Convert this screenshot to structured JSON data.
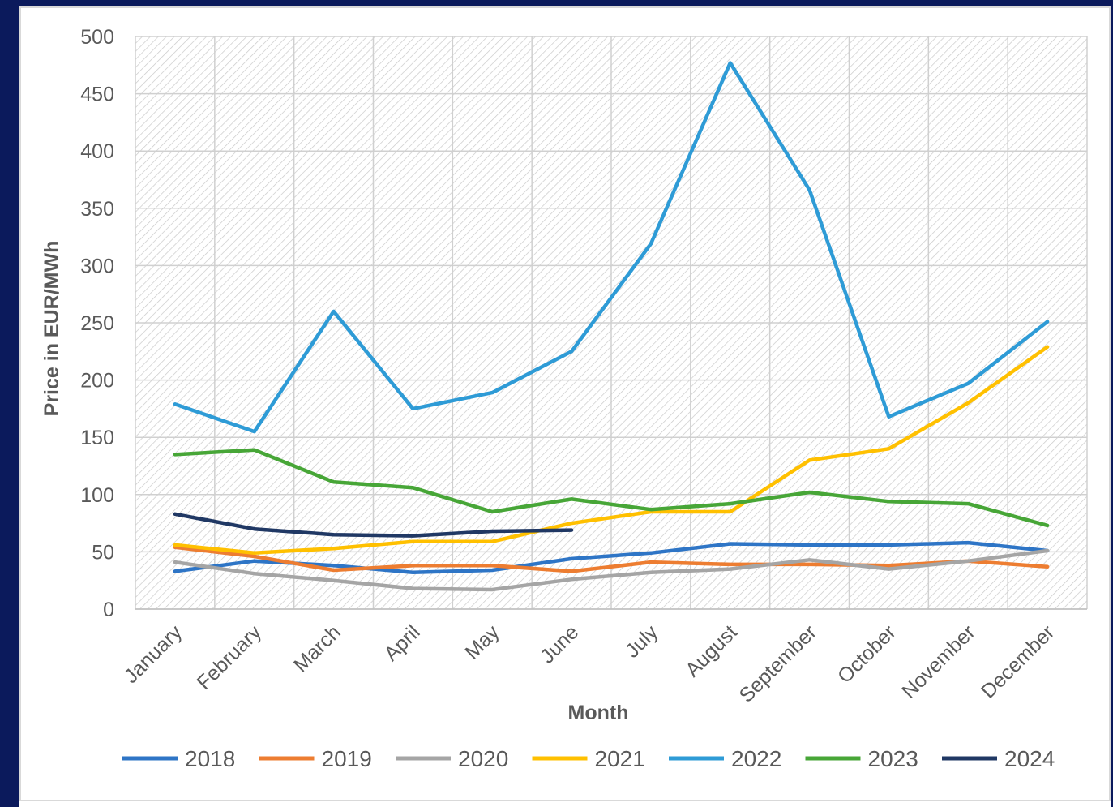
{
  "chart_data": {
    "type": "line",
    "title": "",
    "xlabel": "Month",
    "ylabel": "Price in EUR/MWh",
    "ylim": [
      0,
      500
    ],
    "yticks": [
      0,
      50,
      100,
      150,
      200,
      250,
      300,
      350,
      400,
      450,
      500
    ],
    "grid": true,
    "legend": "bottom",
    "categories": [
      "January",
      "February",
      "March",
      "April",
      "May",
      "June",
      "July",
      "August",
      "September",
      "October",
      "November",
      "December"
    ],
    "series": [
      {
        "name": "2018",
        "color": "#2e75c6",
        "values": [
          33,
          42,
          38,
          32,
          34,
          44,
          49,
          57,
          56,
          56,
          58,
          51
        ]
      },
      {
        "name": "2019",
        "color": "#ed7d31",
        "values": [
          54,
          46,
          34,
          38,
          38,
          33,
          41,
          39,
          39,
          38,
          42,
          37
        ]
      },
      {
        "name": "2020",
        "color": "#a5a5a5",
        "values": [
          41,
          31,
          25,
          18,
          17,
          26,
          32,
          35,
          43,
          35,
          42,
          51
        ]
      },
      {
        "name": "2021",
        "color": "#ffc000",
        "values": [
          56,
          49,
          53,
          59,
          59,
          75,
          85,
          85,
          130,
          140,
          180,
          229
        ]
      },
      {
        "name": "2022",
        "color": "#2e9bd6",
        "values": [
          179,
          155,
          260,
          175,
          189,
          225,
          319,
          477,
          366,
          168,
          197,
          251
        ]
      },
      {
        "name": "2023",
        "color": "#47a637",
        "values": [
          135,
          139,
          111,
          106,
          85,
          96,
          87,
          92,
          102,
          94,
          92,
          73
        ]
      },
      {
        "name": "2024",
        "color": "#203864",
        "values": [
          83,
          70,
          65,
          64,
          68,
          69,
          null,
          null,
          null,
          null,
          null,
          null
        ]
      }
    ]
  }
}
